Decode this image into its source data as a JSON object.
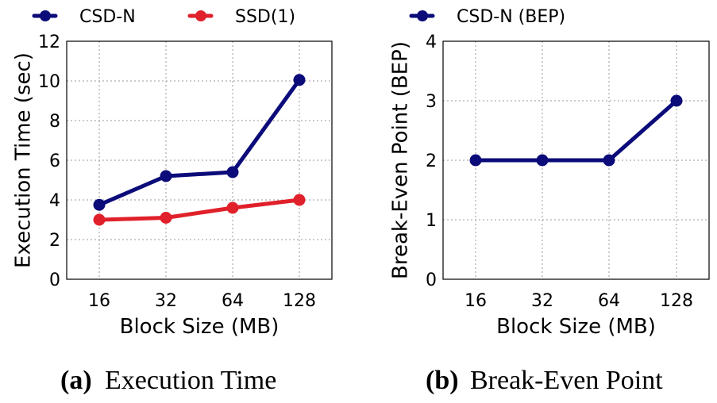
{
  "chart_data": [
    {
      "type": "line",
      "categories": [
        "16",
        "32",
        "64",
        "128"
      ],
      "series": [
        {
          "name": "CSD-N",
          "color": "#0b0b7a",
          "values": [
            3.75,
            5.2,
            5.4,
            10.05
          ]
        },
        {
          "name": "SSD(1)",
          "color": "#e0202a",
          "values": [
            3.0,
            3.1,
            3.6,
            4.0
          ]
        }
      ],
      "xlabel": "Block Size (MB)",
      "ylabel": "Execution Time (sec)",
      "ylim": [
        0,
        12
      ],
      "yticks": [
        0,
        2,
        4,
        6,
        8,
        10,
        12
      ],
      "grid": true,
      "legend": "top",
      "caption_label": "(a)",
      "caption_text": "Execution Time"
    },
    {
      "type": "line",
      "categories": [
        "16",
        "32",
        "64",
        "128"
      ],
      "series": [
        {
          "name": "CSD-N (BEP)",
          "color": "#0b0b7a",
          "values": [
            2,
            2,
            2,
            3
          ]
        }
      ],
      "xlabel": "Block Size (MB)",
      "ylabel": "Break-Even Point (BEP)",
      "ylim": [
        0,
        4
      ],
      "yticks": [
        0,
        1,
        2,
        3,
        4
      ],
      "grid": true,
      "legend": "top",
      "caption_label": "(b)",
      "caption_text": "Break-Even Point"
    }
  ]
}
